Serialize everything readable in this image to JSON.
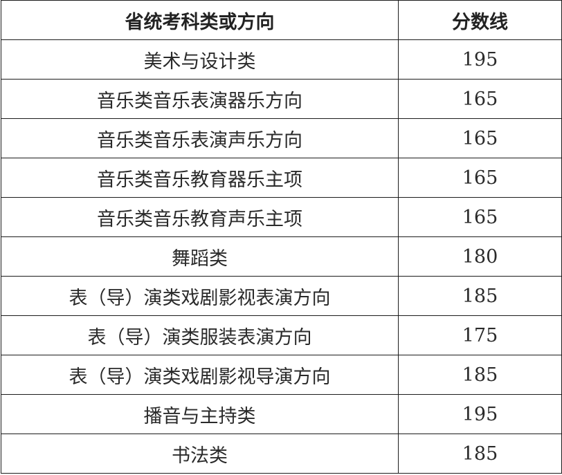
{
  "table": {
    "headers": [
      "省统考科类或方向",
      "分数线"
    ],
    "rows": [
      [
        "美术与设计类",
        "195"
      ],
      [
        "音乐类音乐表演器乐方向",
        "165"
      ],
      [
        "音乐类音乐表演声乐方向",
        "165"
      ],
      [
        "音乐类音乐教育器乐主项",
        "165"
      ],
      [
        "音乐类音乐教育声乐主项",
        "165"
      ],
      [
        "舞蹈类",
        "180"
      ],
      [
        "表（导）演类戏剧影视表演方向",
        "185"
      ],
      [
        "表（导）演类服装表演方向",
        "175"
      ],
      [
        "表（导）演类戏剧影视导演方向",
        "185"
      ],
      [
        "播音与主持类",
        "195"
      ],
      [
        "书法类",
        "185"
      ]
    ]
  }
}
